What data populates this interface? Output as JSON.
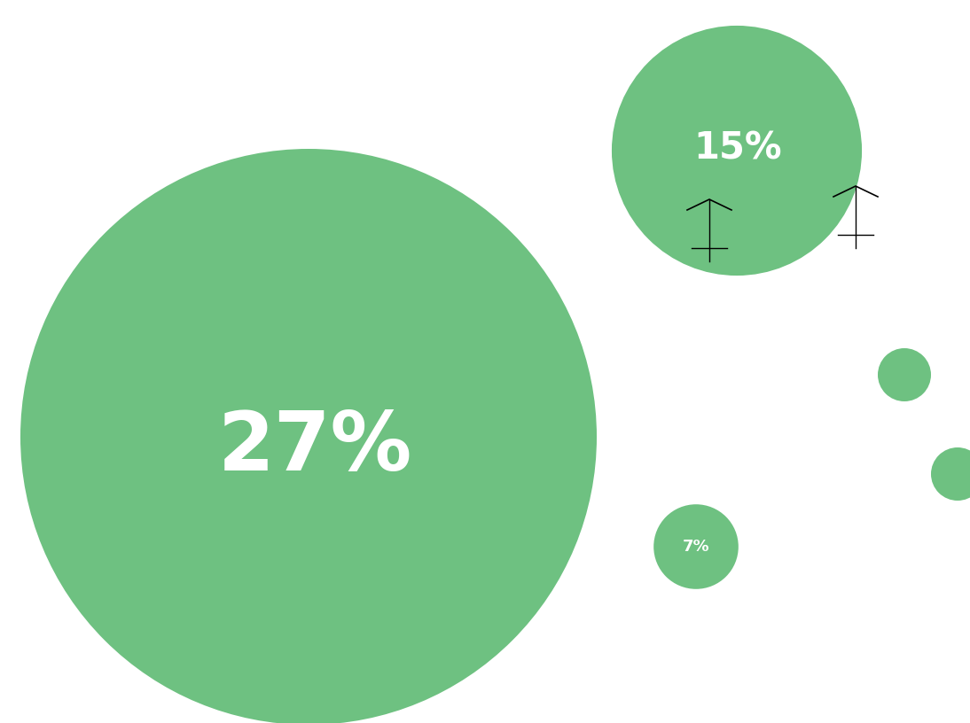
{
  "chart_data": {
    "type": "bubble",
    "values": [
      27,
      15,
      7
    ],
    "value_labels": [
      "27%",
      "15%",
      "7%"
    ],
    "color": "#6ec181",
    "data_labels": true,
    "tick_labels": false
  }
}
